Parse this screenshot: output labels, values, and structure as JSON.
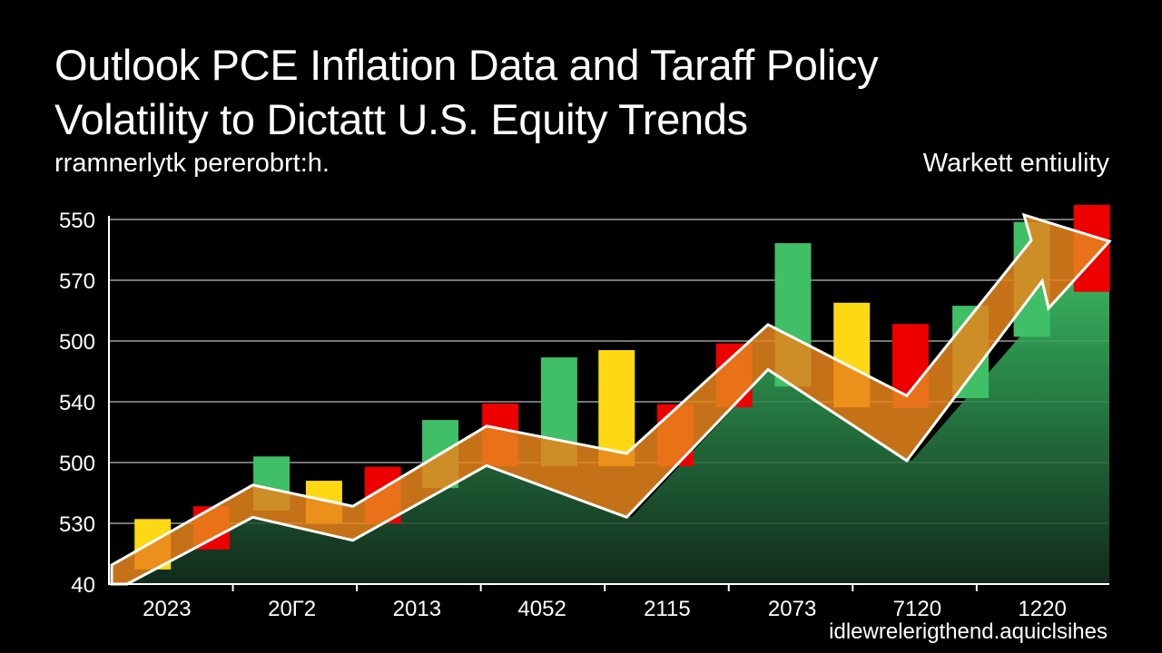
{
  "chart_data": {
    "type": "bar",
    "title": "Outlook PCE Inflation Data and Taraff Policy Volatility to Dictatt U.S. Equity Trends",
    "title_lines": [
      "Outlook PCE Inflation Data and Taraff Policy",
      "Volatility to Dictatt U.S. Equity Trends"
    ],
    "subtitle": "rramnerlytk pererobrt:h.",
    "legend_label": "Warkett entiulity",
    "footer": "idlewrelerigthend.aquiclsihes",
    "xlabel": "",
    "ylabel": "",
    "grid": true,
    "ylim": [
      0,
      6
    ],
    "y_tick_values": [
      6,
      5,
      4,
      3,
      2,
      1,
      0
    ],
    "y_tick_labels": [
      "550",
      "570",
      "500",
      "540",
      "500",
      "530",
      "40"
    ],
    "x_tick_labels": [
      "2023",
      "20Г2",
      "2013",
      "4052",
      "2115",
      "2073",
      "7120",
      "1220"
    ],
    "xlim": [
      0,
      8
    ],
    "colors": {
      "green": "#3fbf66",
      "yellow": "#ffd814",
      "red": "#ee0000",
      "orange_band": "#e8851c",
      "area_top": "#2f8f4f",
      "area_bottom": "#10281a",
      "grid": "#6a6a6a",
      "axis": "#ffffff"
    },
    "bars": [
      {
        "x": 0.35,
        "low": 0.24,
        "high": 1.07,
        "color": "yellow"
      },
      {
        "x": 0.82,
        "low": 0.57,
        "high": 1.28,
        "color": "red"
      },
      {
        "x": 1.3,
        "low": 1.21,
        "high": 2.1,
        "color": "green"
      },
      {
        "x": 1.72,
        "low": 1.0,
        "high": 1.7,
        "color": "yellow"
      },
      {
        "x": 2.19,
        "low": 1.0,
        "high": 1.93,
        "color": "red"
      },
      {
        "x": 2.65,
        "low": 1.58,
        "high": 2.7,
        "color": "green"
      },
      {
        "x": 3.13,
        "low": 1.94,
        "high": 2.97,
        "color": "red"
      },
      {
        "x": 3.6,
        "low": 1.94,
        "high": 3.73,
        "color": "green"
      },
      {
        "x": 4.06,
        "low": 1.94,
        "high": 3.85,
        "color": "yellow"
      },
      {
        "x": 4.53,
        "low": 1.94,
        "high": 2.96,
        "color": "red"
      },
      {
        "x": 5.0,
        "low": 2.91,
        "high": 3.96,
        "color": "red"
      },
      {
        "x": 5.47,
        "low": 3.25,
        "high": 5.61,
        "color": "green"
      },
      {
        "x": 5.94,
        "low": 2.91,
        "high": 4.63,
        "color": "yellow"
      },
      {
        "x": 6.41,
        "low": 2.9,
        "high": 4.28,
        "color": "red"
      },
      {
        "x": 6.89,
        "low": 3.06,
        "high": 4.58,
        "color": "green"
      },
      {
        "x": 7.38,
        "low": 4.07,
        "high": 5.96,
        "color": "green"
      },
      {
        "x": 7.86,
        "low": 4.81,
        "high": 6.24,
        "color": "red"
      }
    ],
    "area_series": {
      "name": "trend area",
      "x": [
        0.15,
        1.15,
        1.95,
        3.02,
        4.18,
        5.28,
        6.42,
        7.47,
        8.0
      ],
      "y": [
        0.0,
        1.1,
        0.72,
        1.95,
        1.1,
        3.53,
        2.03,
        4.51,
        5.55
      ]
    },
    "band_series": {
      "name": "trend arrow",
      "x": [
        0.02,
        1.15,
        1.95,
        3.02,
        4.14,
        5.27,
        6.38,
        7.27
      ],
      "upper": [
        0.31,
        1.63,
        1.28,
        2.6,
        2.15,
        4.27,
        3.1,
        6.07
      ],
      "lower": [
        0.0,
        1.1,
        0.72,
        1.95,
        1.1,
        3.53,
        2.03,
        4.51
      ],
      "arrow_tip": {
        "x": 8.0,
        "y": 5.64
      }
    }
  }
}
